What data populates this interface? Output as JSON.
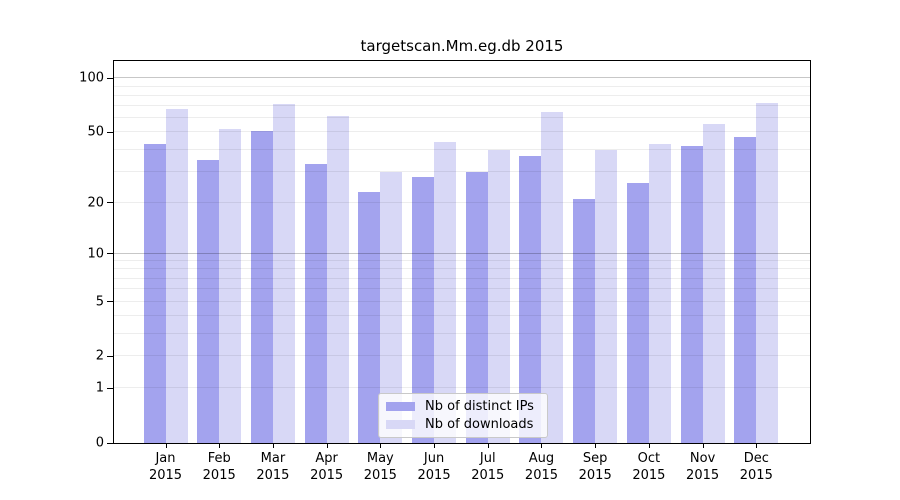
{
  "chart_data": {
    "type": "bar",
    "title": "targetscan.Mm.eg.db 2015",
    "categories": [
      "Jan",
      "Feb",
      "Mar",
      "Apr",
      "May",
      "Jun",
      "Jul",
      "Aug",
      "Sep",
      "Oct",
      "Nov",
      "Dec"
    ],
    "x_tick_second_line": "2015",
    "series": [
      {
        "name": "Nb of distinct IPs",
        "color": "#a3a3ee",
        "values": [
          43,
          35,
          51,
          33,
          23,
          28,
          30,
          37,
          21,
          26,
          42,
          47
        ]
      },
      {
        "name": "Nb of downloads",
        "color": "#d8d8f6",
        "values": [
          68,
          52,
          72,
          62,
          30,
          44,
          40,
          65,
          40,
          43,
          56,
          73
        ]
      }
    ],
    "yscale": "log1p",
    "y_ticks": [
      0,
      1,
      2,
      5,
      10,
      20,
      50,
      100
    ],
    "y_minor_gridlines": [
      1,
      2,
      3,
      4,
      5,
      6,
      7,
      8,
      9,
      20,
      30,
      40,
      50,
      60,
      70,
      80,
      90
    ],
    "y_major_gridlines": [
      10,
      100
    ],
    "ylim": [
      0,
      130
    ],
    "grid": true,
    "legend_position": "bottom-center"
  },
  "colors": {
    "background": "#ffffff",
    "spine": "#000000",
    "minor_grid": "rgba(0,0,0,0.07)",
    "major_grid": "rgba(0,0,0,0.22)",
    "text": "#000000",
    "legend_border": "#c9c9c9",
    "legend_bg": "rgba(255,255,255,0.8)"
  }
}
